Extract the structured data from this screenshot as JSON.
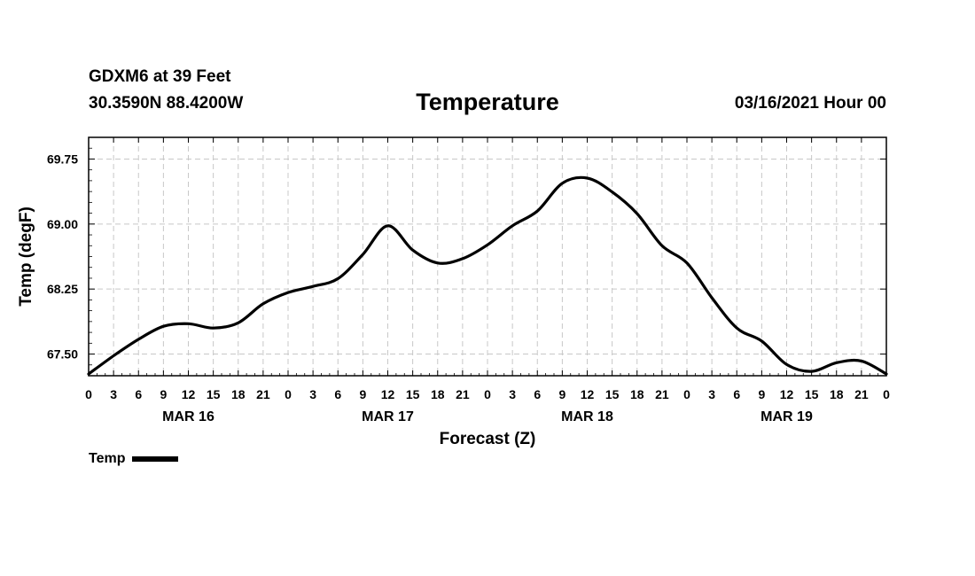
{
  "header": {
    "station": "GDXM6 at 39 Feet",
    "coords": "30.3590N 88.4200W",
    "title": "Temperature",
    "datetime": "03/16/2021 Hour 00"
  },
  "legend": {
    "label": "Temp",
    "color": "#000000"
  },
  "chart_data": {
    "type": "line",
    "title": "Temperature",
    "xlabel": "Forecast (Z)",
    "ylabel": "Temp (degF)",
    "xlim": [
      0,
      96
    ],
    "ylim": [
      67.25,
      70.0
    ],
    "yticks": [
      67.5,
      68.25,
      69.0,
      69.75
    ],
    "ytick_labels": [
      "67.50",
      "68.25",
      "69.00",
      "69.75"
    ],
    "xtick_labels": [
      "0",
      "3",
      "6",
      "9",
      "12",
      "15",
      "18",
      "21",
      "0",
      "3",
      "6",
      "9",
      "12",
      "15",
      "18",
      "21",
      "0",
      "3",
      "6",
      "9",
      "12",
      "15",
      "18",
      "21",
      "0",
      "3",
      "6",
      "9",
      "12",
      "15",
      "18",
      "21",
      "0"
    ],
    "day_labels": [
      {
        "hour": 12,
        "label": "MAR 16"
      },
      {
        "hour": 36,
        "label": "MAR 17"
      },
      {
        "hour": 60,
        "label": "MAR 18"
      },
      {
        "hour": 84,
        "label": "MAR 19"
      }
    ],
    "grid": true,
    "series": [
      {
        "name": "Temp",
        "color": "#000000",
        "x": [
          0,
          3,
          6,
          9,
          12,
          15,
          18,
          21,
          24,
          27,
          30,
          33,
          36,
          39,
          42,
          45,
          48,
          51,
          54,
          57,
          60,
          63,
          66,
          69,
          72,
          75,
          78,
          81,
          84,
          87,
          90,
          93,
          96
        ],
        "y": [
          67.27,
          67.48,
          67.67,
          67.82,
          67.85,
          67.8,
          67.86,
          68.08,
          68.21,
          68.28,
          68.37,
          68.65,
          68.98,
          68.7,
          68.55,
          68.6,
          68.76,
          68.98,
          69.15,
          69.47,
          69.53,
          69.37,
          69.12,
          68.75,
          68.55,
          68.15,
          67.8,
          67.65,
          67.38,
          67.3,
          67.4,
          67.42,
          67.27
        ]
      }
    ]
  }
}
